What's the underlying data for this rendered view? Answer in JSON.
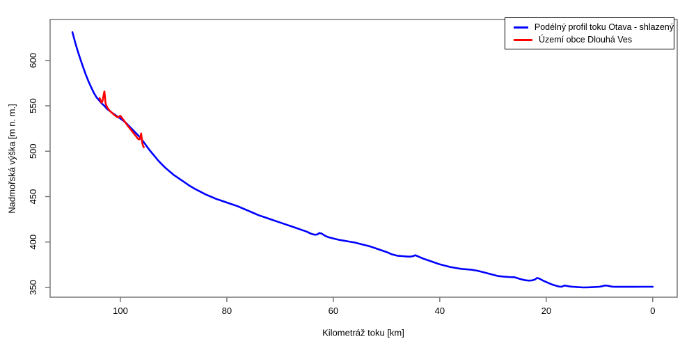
{
  "chart_data": {
    "type": "line",
    "title": "",
    "xlabel": "Kilometráž toku [km]",
    "ylabel": "Nadmořská výška [m n. m.]",
    "x_ticks": [
      100,
      80,
      60,
      40,
      20,
      0
    ],
    "y_ticks": [
      350,
      400,
      450,
      500,
      550,
      600
    ],
    "xlim": [
      113.2,
      -4.6
    ],
    "ylim": [
      339.3,
      645
    ],
    "x_axis_reversed": true,
    "grid": false,
    "legend_position": "top-right",
    "background": "#ffffff",
    "axis_color": "#6e6e6e",
    "tick_label_color": "#000000",
    "series": [
      {
        "name": "Podélný profil toku Otava - shlazený",
        "color": "#0000ff",
        "points": [
          [
            109.0,
            631
          ],
          [
            108.5,
            620
          ],
          [
            108.0,
            610
          ],
          [
            107.5,
            601
          ],
          [
            107.0,
            592.5
          ],
          [
            106.5,
            584.5
          ],
          [
            106.0,
            577
          ],
          [
            105.5,
            570.5
          ],
          [
            105.0,
            564.5
          ],
          [
            104.5,
            559.5
          ],
          [
            104.0,
            556
          ],
          [
            103.5,
            552.5
          ],
          [
            103.0,
            550
          ],
          [
            102.5,
            546.5
          ],
          [
            102.0,
            544.3
          ],
          [
            101.5,
            542
          ],
          [
            101.0,
            540
          ],
          [
            100.5,
            538
          ],
          [
            100.0,
            536
          ],
          [
            99.5,
            533.8
          ],
          [
            99.0,
            531.5
          ],
          [
            98.5,
            528.5
          ],
          [
            98.0,
            525.5
          ],
          [
            97.5,
            522.5
          ],
          [
            97.0,
            519.5
          ],
          [
            96.5,
            516.5
          ],
          [
            96.0,
            513
          ],
          [
            95.5,
            509
          ],
          [
            95.0,
            505
          ],
          [
            94.5,
            501
          ],
          [
            94.0,
            497.5
          ],
          [
            93.5,
            494
          ],
          [
            93.0,
            490.5
          ],
          [
            92.5,
            487.3
          ],
          [
            92.0,
            484.3
          ],
          [
            91.5,
            481.5
          ],
          [
            91.0,
            479
          ],
          [
            90.5,
            476.5
          ],
          [
            90.0,
            474
          ],
          [
            89.0,
            470
          ],
          [
            88.0,
            466
          ],
          [
            87.0,
            462
          ],
          [
            86.0,
            458.5
          ],
          [
            85.0,
            455.5
          ],
          [
            84.0,
            452.5
          ],
          [
            83.0,
            450
          ],
          [
            82.0,
            447.5
          ],
          [
            81.0,
            445.5
          ],
          [
            80.0,
            443.5
          ],
          [
            79.0,
            441.5
          ],
          [
            78.0,
            439.5
          ],
          [
            77.0,
            437
          ],
          [
            76.0,
            434.5
          ],
          [
            75.0,
            432
          ],
          [
            74.0,
            429.5
          ],
          [
            73.0,
            427.5
          ],
          [
            72.0,
            425.5
          ],
          [
            71.0,
            423.5
          ],
          [
            70.0,
            421.5
          ],
          [
            69.0,
            419.5
          ],
          [
            68.0,
            417.5
          ],
          [
            67.0,
            415.5
          ],
          [
            66.0,
            413.5
          ],
          [
            65.0,
            411.5
          ],
          [
            64.5,
            410
          ],
          [
            64.0,
            408.8
          ],
          [
            63.5,
            408
          ],
          [
            63.0,
            408.4
          ],
          [
            62.6,
            410
          ],
          [
            62.2,
            409.3
          ],
          [
            61.8,
            407.8
          ],
          [
            61.4,
            406.5
          ],
          [
            61.0,
            405.5
          ],
          [
            60.5,
            404.7
          ],
          [
            60.0,
            404
          ],
          [
            59.0,
            402.5
          ],
          [
            58.0,
            401.5
          ],
          [
            57.0,
            400.5
          ],
          [
            56.0,
            399.5
          ],
          [
            55.0,
            398
          ],
          [
            54.0,
            396.5
          ],
          [
            53.0,
            395
          ],
          [
            52.0,
            393
          ],
          [
            51.0,
            391
          ],
          [
            50.0,
            389
          ],
          [
            49.0,
            386.5
          ],
          [
            48.0,
            385
          ],
          [
            47.0,
            384.5
          ],
          [
            46.0,
            384
          ],
          [
            45.5,
            384
          ],
          [
            45.0,
            384.5
          ],
          [
            44.6,
            385.5
          ],
          [
            44.2,
            384.5
          ],
          [
            43.8,
            383.5
          ],
          [
            43.0,
            381.5
          ],
          [
            42.0,
            379.5
          ],
          [
            41.0,
            377.5
          ],
          [
            40.0,
            375.5
          ],
          [
            39.0,
            374
          ],
          [
            38.0,
            372.5
          ],
          [
            37.0,
            371.5
          ],
          [
            36.0,
            370.5
          ],
          [
            35.0,
            370
          ],
          [
            34.0,
            369.5
          ],
          [
            33.0,
            368.5
          ],
          [
            32.0,
            367
          ],
          [
            31.0,
            365.5
          ],
          [
            30.0,
            364
          ],
          [
            29.0,
            362.5
          ],
          [
            28.0,
            362
          ],
          [
            27.0,
            361.5
          ],
          [
            26.0,
            361.3
          ],
          [
            25.0,
            359.5
          ],
          [
            24.0,
            358
          ],
          [
            23.3,
            357.5
          ],
          [
            22.7,
            357.8
          ],
          [
            22.2,
            358.5
          ],
          [
            21.7,
            360.5
          ],
          [
            21.2,
            359.5
          ],
          [
            20.6,
            357.5
          ],
          [
            20.0,
            356
          ],
          [
            19.4,
            354.5
          ],
          [
            18.8,
            353
          ],
          [
            18.2,
            352
          ],
          [
            17.6,
            351
          ],
          [
            17.1,
            350.8
          ],
          [
            16.6,
            352.2
          ],
          [
            16.1,
            351.6
          ],
          [
            15.5,
            351
          ],
          [
            15.0,
            350.8
          ],
          [
            14.0,
            350.3
          ],
          [
            13.0,
            350
          ],
          [
            12.0,
            350.2
          ],
          [
            11.0,
            350.5
          ],
          [
            10.0,
            350.8
          ],
          [
            9.5,
            351.4
          ],
          [
            9.0,
            352.2
          ],
          [
            8.5,
            352
          ],
          [
            8.0,
            351.3
          ],
          [
            7.5,
            350.8
          ],
          [
            7.0,
            350.7
          ],
          [
            6.0,
            350.7
          ],
          [
            5.0,
            350.7
          ],
          [
            4.0,
            350.7
          ],
          [
            3.0,
            350.7
          ],
          [
            2.0,
            350.8
          ],
          [
            1.0,
            350.8
          ],
          [
            0.0,
            350.8
          ]
        ]
      },
      {
        "name": "Území obce Dlouhá Ves",
        "color": "#ff0000",
        "points": [
          [
            103.9,
            558.5
          ],
          [
            103.7,
            555.5
          ],
          [
            103.55,
            553.5
          ],
          [
            103.4,
            554.5
          ],
          [
            103.25,
            558.5
          ],
          [
            103.1,
            563.5
          ],
          [
            103.0,
            565.8
          ],
          [
            102.9,
            560.0
          ],
          [
            102.8,
            553.5
          ],
          [
            102.65,
            550.5
          ],
          [
            102.45,
            548.0
          ],
          [
            102.2,
            546.0
          ],
          [
            101.9,
            544.0
          ],
          [
            101.6,
            542.3
          ],
          [
            101.3,
            540.7
          ],
          [
            101.0,
            539.3
          ],
          [
            100.7,
            538.0
          ],
          [
            100.45,
            537.2
          ],
          [
            100.25,
            538.0
          ],
          [
            100.05,
            539.0
          ],
          [
            99.85,
            538.0
          ],
          [
            99.65,
            536.2
          ],
          [
            99.4,
            534.2
          ],
          [
            99.1,
            532.0
          ],
          [
            98.8,
            529.5
          ],
          [
            98.5,
            527.2
          ],
          [
            98.1,
            524.2
          ],
          [
            97.7,
            521.2
          ],
          [
            97.3,
            518.2
          ],
          [
            97.0,
            516.2
          ],
          [
            96.75,
            514.0
          ],
          [
            96.55,
            513.2
          ],
          [
            96.4,
            513.0
          ],
          [
            96.25,
            515.0
          ],
          [
            96.1,
            519.5
          ],
          [
            96.0,
            514.5
          ],
          [
            95.9,
            509.5
          ],
          [
            95.75,
            506.0
          ],
          [
            95.6,
            504.3
          ]
        ]
      }
    ]
  }
}
